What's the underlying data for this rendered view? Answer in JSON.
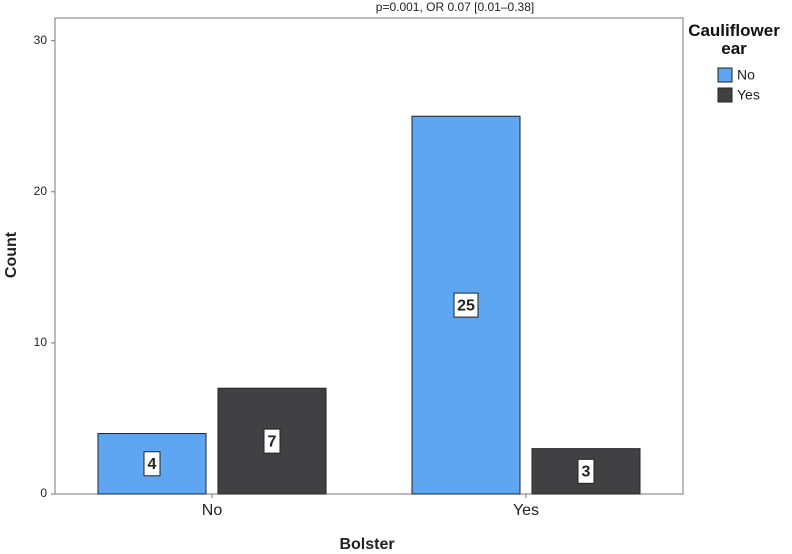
{
  "chart_data": {
    "type": "bar",
    "title": "p=0.001, OR 0.07 [0.01–0.38]",
    "x_label": "Bolster",
    "y_label": "Count",
    "legend_title": "Cauliflower ear",
    "categories": [
      "No",
      "Yes"
    ],
    "series": [
      {
        "name": "No",
        "color": "#5fa6f2",
        "values": [
          4,
          25
        ]
      },
      {
        "name": "Yes",
        "color": "#414143",
        "values": [
          7,
          3
        ]
      }
    ],
    "ylim": [
      0,
      31.5
    ],
    "yticks": [
      0,
      10,
      20,
      30
    ],
    "grid": false,
    "legend": "right"
  }
}
